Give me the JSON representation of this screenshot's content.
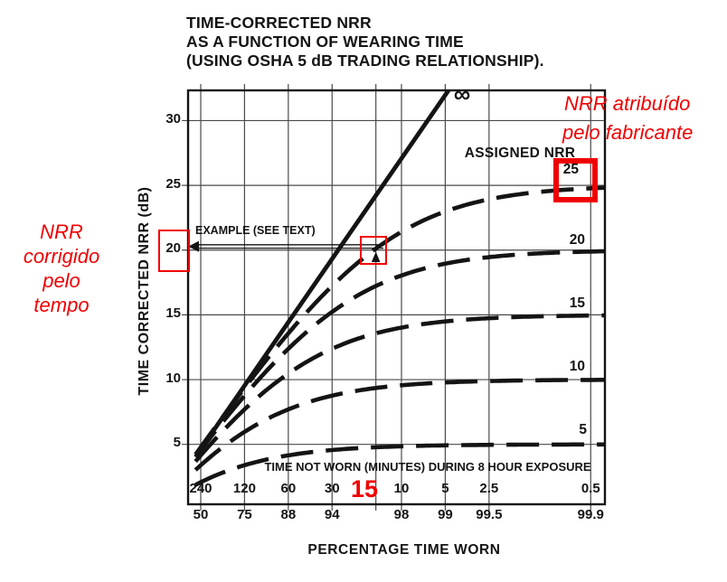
{
  "figure": {
    "title_lines": [
      "TIME-CORRECTED NRR",
      "AS A FUNCTION OF WEARING TIME",
      "(USING OSHA 5 dB TRADING RELATIONSHIP)."
    ]
  },
  "chart_data": {
    "type": "line",
    "title": "TIME-CORRECTED NRR AS A FUNCTION OF WEARING TIME (USING OSHA 5 dB TRADING RELATIONSHIP).",
    "ylabel": "TIME CORRECTED NRR (dB)",
    "xlabel": "PERCENTAGE TIME WORN",
    "x2label": "TIME NOT WORN (MINUTES) DURING 8 HOUR EXPOSURE",
    "legend_title": "ASSIGNED NRR",
    "infinity_symbol": "∞",
    "grid": true,
    "ylim": [
      0.4,
      32.3
    ],
    "y_ticks": [
      5,
      10,
      15,
      20,
      25,
      30
    ],
    "x_axis": {
      "scale": "logarithmic in time-not-worn (one octave per division)",
      "minutes_all_ticks": [
        240,
        120,
        60,
        30,
        15,
        10,
        5,
        2.5,
        0.5
      ],
      "minutes_tick_labels": [
        "240",
        "120",
        "60",
        "30",
        "10",
        "5",
        "2.5",
        "0.5"
      ],
      "minutes_label_values": [
        240,
        120,
        60,
        30,
        10,
        5,
        2.5,
        0.5
      ],
      "pct_tick_labels": [
        "50",
        "75",
        "88",
        "94",
        "98",
        "99",
        "99.5",
        "99.9"
      ],
      "pct_tick_minutes": [
        240,
        120,
        60,
        30,
        10,
        5,
        2.5,
        0.5
      ]
    },
    "series": [
      {
        "label": "∞",
        "nrr": "infinity",
        "style": "solid",
        "values_at_minutes_ticks": [
          5,
          10,
          15,
          20,
          25,
          27.9,
          null,
          null,
          null
        ]
      },
      {
        "label": "25",
        "nrr": 25,
        "style": "dashed",
        "values_at_minutes_ticks": [
          4.8,
          9.3,
          13.6,
          17.2,
          20.1,
          21.4,
          23.0,
          23.9,
          24.8
        ]
      },
      {
        "label": "20",
        "nrr": 20,
        "style": "dashed",
        "values_at_minutes_ticks": [
          4.6,
          8.7,
          12.4,
          15.2,
          17.2,
          18.0,
          19.0,
          19.5,
          19.9
        ]
      },
      {
        "label": "15",
        "nrr": 15,
        "style": "dashed",
        "values_at_minutes_ticks": [
          4.1,
          7.7,
          10.5,
          12.4,
          13.6,
          14.0,
          14.5,
          14.7,
          14.9
        ]
      },
      {
        "label": "10",
        "nrr": 10,
        "style": "dashed",
        "values_at_minutes_ticks": [
          3.4,
          6.0,
          7.7,
          8.7,
          9.4,
          9.6,
          9.8,
          9.9,
          10.0
        ]
      },
      {
        "label": "5",
        "nrr": 5,
        "style": "dashed",
        "values_at_minutes_ticks": [
          2.1,
          3.4,
          4.1,
          4.6,
          4.8,
          4.9,
          4.9,
          5.0,
          5.0
        ]
      }
    ],
    "example": {
      "label": "EXAMPLE (SEE TEXT)",
      "arrow_points_to_db": 20,
      "arrow_from_minutes": 15
    },
    "colors": {
      "ink": "#141414",
      "grid": "#4a4a4a"
    }
  },
  "annotations": {
    "red_color": "#f00000",
    "top_right_lines": [
      "NRR atribuído",
      "pelo fabricante"
    ],
    "left_lines": [
      "NRR",
      "corrigido",
      "pelo",
      "tempo"
    ],
    "minutes_15": "15"
  }
}
